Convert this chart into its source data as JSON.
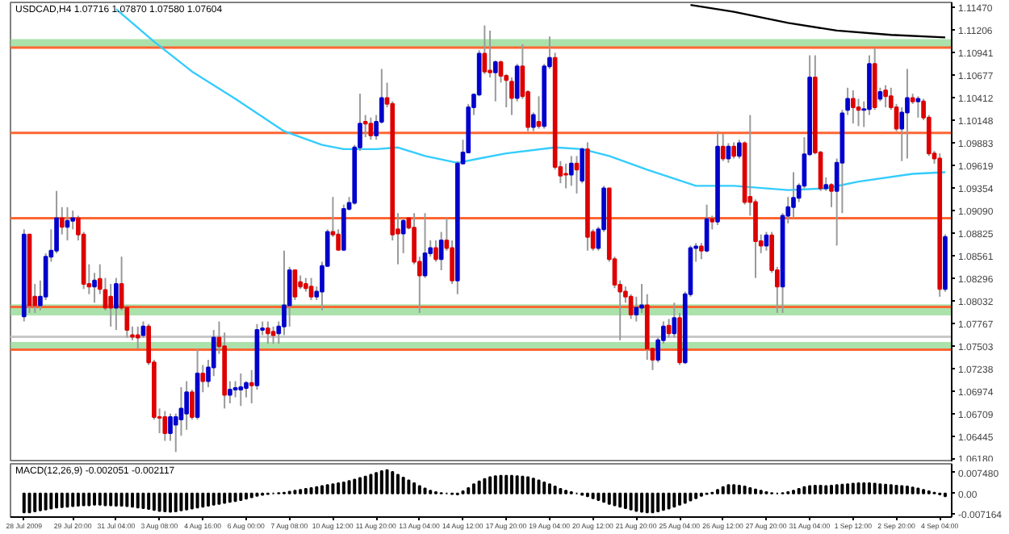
{
  "chart_data": [
    {
      "type": "candlestick",
      "title": "USDCAD,H4 1.07716 1.07870 1.07580 1.07604",
      "colors": [
        "#0000cc",
        "#dd0000",
        "#dd0000",
        "#0000cc",
        "#0000cc",
        "#0000cc",
        "#0000cc",
        "#dd0000",
        "#0000cc",
        "#0000cc",
        "#dd0000",
        "#dd0000",
        "#dd0000",
        "#0000cc",
        "#dd0000",
        "#dd0000",
        "#dd0000",
        "#0000cc",
        "#dd0000",
        "#dd0000",
        "#dd0000",
        "#dd0000",
        "#0000cc",
        "#dd0000",
        "#dd0000",
        "#dd0000",
        "#dd0000",
        "#0000cc",
        "#0000cc",
        "#0000cc",
        "#0000cc",
        "#dd0000",
        "#0000cc",
        "#dd0000",
        "#0000cc",
        "#0000cc",
        "#dd0000",
        "#dd0000",
        "#0000cc",
        "#0000cc",
        "#0000cc",
        "#0000cc",
        "#dd0000",
        "#0000cc",
        "#0000cc",
        "#dd0000",
        "#dd0000",
        "#0000cc",
        "#0000cc",
        "#0000cc",
        "#dd0000",
        "#dd0000",
        "#dd0000",
        "#dd0000",
        "#0000cc",
        "#0000cc",
        "#0000cc",
        "#dd0000",
        "#dd0000",
        "#0000cc",
        "#0000cc",
        "#0000cc",
        "#0000cc",
        "#dd0000",
        "#dd0000",
        "#0000cc",
        "#0000cc",
        "#dd0000",
        "#dd0000",
        "#dd0000",
        "#0000cc",
        "#dd0000",
        "#dd0000",
        "#dd0000",
        "#0000cc",
        "#0000cc",
        "#dd0000",
        "#0000cc",
        "#dd0000",
        "#dd0000",
        "#0000cc",
        "#0000cc",
        "#0000cc",
        "#0000cc",
        "#0000cc",
        "#dd0000",
        "#dd0000",
        "#0000cc",
        "#dd0000",
        "#dd0000",
        "#dd0000",
        "#0000cc",
        "#dd0000",
        "#dd0000",
        "#0000cc",
        "#dd0000",
        "#0000cc",
        "#0000cc",
        "#dd0000",
        "#dd0000",
        "#dd0000",
        "#0000cc",
        "#dd0000",
        "#0000cc",
        "#dd0000",
        "#dd0000",
        "#0000cc",
        "#0000cc",
        "#dd0000",
        "#dd0000",
        "#dd0000",
        "#dd0000",
        "#dd0000",
        "#0000cc",
        "#0000cc",
        "#dd0000",
        "#dd0000",
        "#0000cc",
        "#0000cc",
        "#dd0000",
        "#0000cc",
        "#dd0000",
        "#0000cc",
        "#0000cc",
        "#0000cc",
        "#dd0000",
        "#0000cc",
        "#dd0000",
        "#0000cc",
        "#dd0000",
        "#0000cc",
        "#dd0000",
        "#0000cc",
        "#dd0000",
        "#dd0000",
        "#dd0000",
        "#dd0000",
        "#0000cc",
        "#dd0000",
        "#dd0000",
        "#0000cc",
        "#0000cc",
        "#0000cc",
        "#0000cc",
        "#0000cc",
        "#0000cc",
        "#dd0000",
        "#dd0000",
        "#0000cc",
        "#dd0000",
        "#0000cc",
        "#0000cc",
        "#0000cc",
        "#dd0000",
        "#dd0000",
        "#0000cc",
        "#0000cc",
        "#dd0000",
        "#0000cc",
        "#dd0000",
        "#dd0000",
        "#dd0000",
        "#0000cc",
        "#0000cc",
        "#dd0000",
        "#0000cc",
        "#dd0000",
        "#dd0000",
        "#dd0000",
        "#dd0000",
        "#0000cc"
      ],
      "categories": [
        null,
        null,
        null,
        null,
        null,
        null,
        null,
        null,
        null,
        null,
        null,
        null,
        null,
        null,
        null,
        null,
        null,
        null,
        null,
        null,
        null,
        null,
        null,
        null,
        null,
        null,
        null,
        null,
        null,
        null,
        null,
        null,
        null,
        null,
        null,
        null,
        null,
        null,
        null,
        null,
        null,
        null,
        null,
        null,
        null,
        null,
        null,
        null,
        null,
        null,
        null,
        null,
        null,
        null,
        null,
        null,
        null,
        null,
        null,
        null,
        null,
        null,
        null,
        null,
        null,
        null,
        null,
        null,
        null,
        null,
        null,
        null,
        null,
        null,
        null,
        null,
        null,
        null,
        null,
        null,
        null,
        null,
        null,
        null,
        null,
        null,
        null,
        null,
        null,
        null,
        null,
        null,
        null,
        null,
        null,
        null,
        null,
        null,
        null,
        null,
        null,
        null,
        null,
        null,
        null,
        null,
        null,
        null,
        null,
        null,
        null,
        null,
        null,
        null,
        null,
        null,
        null,
        null,
        null,
        null,
        null,
        null,
        null,
        null,
        null,
        null,
        null,
        null,
        null,
        null,
        null,
        null,
        null,
        null,
        null,
        null,
        null,
        null,
        null,
        null,
        null,
        null,
        null,
        null,
        null,
        null,
        null,
        null,
        null,
        null,
        null,
        null,
        null,
        null,
        null,
        null,
        null,
        null,
        null,
        null,
        null,
        null,
        null,
        null,
        null,
        null,
        null,
        null,
        null,
        null,
        null
      ],
      "ohlc": [
        [
          1.0785,
          1.0887,
          1.0779,
          1.0881
        ],
        [
          1.0881,
          1.0881,
          1.0789,
          1.0798
        ],
        [
          1.0808,
          1.0823,
          1.0789,
          1.0798
        ],
        [
          1.0798,
          1.0827,
          1.0792,
          1.0808
        ],
        [
          1.0808,
          1.0859,
          1.0804,
          1.0855
        ],
        [
          1.0855,
          1.0887,
          1.0849,
          1.0862
        ],
        [
          1.0862,
          1.0932,
          1.0859,
          1.09
        ],
        [
          1.09,
          1.0913,
          1.0881,
          1.089
        ],
        [
          1.089,
          1.0913,
          1.0874,
          1.0897
        ],
        [
          1.0897,
          1.0909,
          1.0887,
          1.09
        ],
        [
          1.09,
          1.0903,
          1.0874,
          1.0881
        ],
        [
          1.0881,
          1.0884,
          1.0817,
          1.0823
        ],
        [
          1.0823,
          1.0846,
          1.0811,
          1.082
        ],
        [
          1.082,
          1.0836,
          1.0801,
          1.0827
        ],
        [
          1.0829,
          1.0846,
          1.0811,
          1.0817
        ],
        [
          1.0816,
          1.083,
          1.0792,
          1.0795
        ],
        [
          1.0808,
          1.0823,
          1.0773,
          1.0795
        ],
        [
          1.0795,
          1.083,
          1.0769,
          1.0823
        ],
        [
          1.0823,
          1.0855,
          1.0792,
          1.0795
        ],
        [
          1.0795,
          1.0798,
          1.076,
          1.0769
        ],
        [
          1.0763,
          1.0773,
          1.0757,
          1.0761
        ],
        [
          1.0763,
          1.0773,
          1.0747,
          1.076
        ],
        [
          1.0763,
          1.0779,
          1.076,
          1.0773
        ],
        [
          1.0773,
          1.0776,
          1.0728,
          1.0731
        ],
        [
          1.0731,
          1.0734,
          1.0664,
          1.0667
        ],
        [
          1.0667,
          1.0677,
          1.0648,
          1.0666
        ],
        [
          1.0667,
          1.0674,
          1.0639,
          1.0648
        ],
        [
          1.0648,
          1.0671,
          1.0639,
          1.0667
        ],
        [
          1.0658,
          1.0671,
          1.0626,
          1.0667
        ],
        [
          1.0664,
          1.0702,
          1.0645,
          1.0677
        ],
        [
          1.0671,
          1.0709,
          1.0652,
          1.0696
        ],
        [
          1.0696,
          1.0699,
          1.0664,
          1.0667
        ],
        [
          1.0667,
          1.0747,
          1.0664,
          1.0718
        ],
        [
          1.0718,
          1.0728,
          1.0696,
          1.0709
        ],
        [
          1.0709,
          1.0734,
          1.0702,
          1.0725
        ],
        [
          1.0725,
          1.0769,
          1.0715,
          1.076
        ],
        [
          1.076,
          1.0779,
          1.0741,
          1.075
        ],
        [
          1.075,
          1.0766,
          1.0677,
          1.0693
        ],
        [
          1.0693,
          1.0709,
          1.0683,
          1.0699
        ],
        [
          1.0699,
          1.0709,
          1.069,
          1.0701
        ],
        [
          1.0699,
          1.0718,
          1.068,
          1.0702
        ],
        [
          1.0701,
          1.0709,
          1.069,
          1.0707
        ],
        [
          1.0707,
          1.0722,
          1.0683,
          1.0704
        ],
        [
          1.0704,
          1.0776,
          1.0699,
          1.0769
        ],
        [
          1.0769,
          1.0779,
          1.0763,
          1.0771
        ],
        [
          1.0771,
          1.0779,
          1.0753,
          1.0765
        ],
        [
          1.0767,
          1.0773,
          1.0753,
          1.0763
        ],
        [
          1.0765,
          1.0779,
          1.0753,
          1.0773
        ],
        [
          1.0773,
          1.0862,
          1.0763,
          1.0798
        ],
        [
          1.0798,
          1.0843,
          1.0773,
          1.0839
        ],
        [
          1.0839,
          1.0839,
          1.0804,
          1.0808
        ],
        [
          1.0825,
          1.0833,
          1.0817,
          1.082
        ],
        [
          1.0823,
          1.083,
          1.0814,
          1.0818
        ],
        [
          1.082,
          1.083,
          1.0804,
          1.0808
        ],
        [
          1.0808,
          1.082,
          1.0804,
          1.0814
        ],
        [
          1.0814,
          1.0849,
          1.0792,
          1.0844
        ],
        [
          1.0844,
          1.0887,
          1.0843,
          1.0884
        ],
        [
          1.0884,
          1.0925,
          1.0878,
          1.0881
        ],
        [
          1.0881,
          1.0887,
          1.0862,
          1.0863
        ],
        [
          1.0863,
          1.0916,
          1.0862,
          1.0911
        ],
        [
          1.0911,
          1.0925,
          1.0909,
          1.0918
        ],
        [
          1.0918,
          1.0986,
          1.0916,
          1.0983
        ],
        [
          1.0983,
          1.1046,
          1.0979,
          1.1011
        ],
        [
          1.1013,
          1.1021,
          1.0995,
          1.1011
        ],
        [
          1.1011,
          1.1018,
          1.0992,
          1.0997
        ],
        [
          1.0997,
          1.1021,
          1.0992,
          1.1013
        ],
        [
          1.1013,
          1.1075,
          1.1011,
          1.1041
        ],
        [
          1.1041,
          1.1059,
          1.103,
          1.1034
        ],
        [
          1.1034,
          1.1037,
          1.0874,
          1.0881
        ],
        [
          1.0887,
          1.0906,
          1.0846,
          1.0882
        ],
        [
          1.0882,
          1.09,
          1.0859,
          1.0897
        ],
        [
          1.09,
          1.09,
          1.0887,
          1.0889
        ],
        [
          1.0889,
          1.0906,
          1.0846,
          1.0849
        ],
        [
          1.0849,
          1.0855,
          1.0789,
          1.0833
        ],
        [
          1.0833,
          1.0906,
          1.083,
          1.0859
        ],
        [
          1.0859,
          1.0874,
          1.0855,
          1.0865
        ],
        [
          1.0865,
          1.0874,
          1.0849,
          1.0852
        ],
        [
          1.0852,
          1.0884,
          1.0839,
          1.0874
        ],
        [
          1.0874,
          1.09,
          1.0862,
          1.0865
        ],
        [
          1.0865,
          1.0874,
          1.0823,
          1.0827
        ],
        [
          1.0827,
          1.0967,
          1.0811,
          1.0964
        ],
        [
          1.0964,
          1.0992,
          1.0964,
          1.0977
        ],
        [
          1.0977,
          1.1034,
          1.0976,
          1.103
        ],
        [
          1.103,
          1.1046,
          1.1021,
          1.1045
        ],
        [
          1.1045,
          1.1097,
          1.1043,
          1.1093
        ],
        [
          1.1093,
          1.1126,
          1.1069,
          1.1072
        ],
        [
          1.1073,
          1.112,
          1.1065,
          1.1071
        ],
        [
          1.1071,
          1.1085,
          1.1037,
          1.1083
        ],
        [
          1.1083,
          1.1085,
          1.1059,
          1.1067
        ],
        [
          1.1067,
          1.1069,
          1.103,
          1.1062
        ],
        [
          1.106,
          1.1065,
          1.1021,
          1.1041
        ],
        [
          1.1041,
          1.1081,
          1.1037,
          1.1078
        ],
        [
          1.1078,
          1.1104,
          1.104,
          1.1043
        ],
        [
          1.1048,
          1.105,
          1.1002,
          1.1007
        ],
        [
          1.1007,
          1.1024,
          1.1002,
          1.1021
        ],
        [
          1.1013,
          1.1043,
          1.1005,
          1.1008
        ],
        [
          1.1008,
          1.1081,
          1.1005,
          1.1078
        ],
        [
          1.1078,
          1.1113,
          1.1075,
          1.1088
        ],
        [
          1.1088,
          1.1094,
          1.0957,
          1.096
        ],
        [
          1.096,
          1.0967,
          1.0941,
          1.095
        ],
        [
          1.0952,
          1.0964,
          1.0935,
          1.0951
        ],
        [
          1.0951,
          1.0973,
          1.0938,
          1.0964
        ],
        [
          1.0964,
          1.0973,
          1.0929,
          1.0957
        ],
        [
          1.0944,
          1.0983,
          1.0941,
          1.0981
        ],
        [
          1.0981,
          1.0989,
          1.0862,
          1.0878
        ],
        [
          1.0884,
          1.0887,
          1.0862,
          1.0865
        ],
        [
          1.0865,
          1.089,
          1.0862,
          1.0887
        ],
        [
          1.0887,
          1.0938,
          1.0884,
          1.0935
        ],
        [
          1.0935,
          1.0935,
          1.0849,
          1.0852
        ],
        [
          1.0852,
          1.0855,
          1.0818,
          1.0822
        ],
        [
          1.0822,
          1.0827,
          1.0757,
          1.0814
        ],
        [
          1.0814,
          1.082,
          1.0801,
          1.0808
        ],
        [
          1.0808,
          1.0811,
          1.0782,
          1.0787
        ],
        [
          1.0787,
          1.0808,
          1.0779,
          1.0795
        ],
        [
          1.0795,
          1.0823,
          1.0789,
          1.0798
        ],
        [
          1.0798,
          1.0811,
          1.0734,
          1.0747
        ],
        [
          1.0747,
          1.0747,
          1.0722,
          1.0734
        ],
        [
          1.0734,
          1.076,
          1.0731,
          1.0757
        ],
        [
          1.0757,
          1.0779,
          1.0753,
          1.0773
        ],
        [
          1.0774,
          1.0782,
          1.076,
          1.0765
        ],
        [
          1.0765,
          1.0801,
          1.076,
          1.0783
        ],
        [
          1.0783,
          1.0789,
          1.0728,
          1.0731
        ],
        [
          1.0731,
          1.0814,
          1.0729,
          1.0811
        ],
        [
          1.0811,
          1.0868,
          1.0808,
          1.0865
        ],
        [
          1.0865,
          1.0871,
          1.0849,
          1.0867
        ],
        [
          1.0867,
          1.0871,
          1.0852,
          1.0862
        ],
        [
          1.0862,
          1.0916,
          1.086,
          1.0899
        ],
        [
          1.0899,
          1.0903,
          1.0887,
          1.0896
        ],
        [
          1.0896,
          1.1002,
          1.0892,
          1.0984
        ],
        [
          1.0984,
          1.0999,
          1.0967,
          1.097
        ],
        [
          1.097,
          1.0988,
          1.0965,
          1.0984
        ],
        [
          1.0984,
          1.0989,
          1.097,
          1.0973
        ],
        [
          1.0973,
          1.0992,
          1.097,
          1.0988
        ],
        [
          1.0988,
          1.099,
          1.0916,
          1.0919
        ],
        [
          1.0925,
          1.1021,
          1.0903,
          1.0919
        ],
        [
          1.0919,
          1.0922,
          1.083,
          1.0873
        ],
        [
          1.0873,
          1.0881,
          1.0859,
          1.0868
        ],
        [
          1.0868,
          1.0884,
          1.0862,
          1.088
        ],
        [
          1.088,
          1.0884,
          1.0836,
          1.0839
        ],
        [
          1.0839,
          1.0843,
          1.0789,
          1.082
        ],
        [
          1.082,
          1.0906,
          1.0789,
          1.0903
        ],
        [
          1.0903,
          1.0925,
          1.0894,
          1.0913
        ],
        [
          1.0913,
          1.0954,
          1.09,
          1.0924
        ],
        [
          1.0924,
          1.0941,
          1.0919,
          1.0938
        ],
        [
          1.0938,
          1.0995,
          1.0935,
          1.0975
        ],
        [
          1.0975,
          1.1091,
          1.0973,
          1.1065
        ],
        [
          1.1065,
          1.1091,
          1.0975,
          1.0977
        ],
        [
          1.0977,
          1.0979,
          1.0932,
          1.0935
        ],
        [
          1.0935,
          1.0948,
          1.0932,
          1.0939
        ],
        [
          1.0939,
          1.0941,
          1.0913,
          1.0932
        ],
        [
          1.0932,
          1.097,
          1.0868,
          1.0965
        ],
        [
          1.0965,
          1.1027,
          1.0906,
          1.1023
        ],
        [
          1.1027,
          1.1053,
          1.1021,
          1.104
        ],
        [
          1.104,
          1.105,
          1.1011,
          1.103
        ],
        [
          1.103,
          1.104,
          1.1008,
          1.1027
        ],
        [
          1.1027,
          1.1037,
          1.1007,
          1.1028
        ],
        [
          1.1028,
          1.1091,
          1.1021,
          1.1081
        ],
        [
          1.1081,
          1.11,
          1.1027,
          1.103
        ],
        [
          1.104,
          1.1053,
          1.1037,
          1.1048
        ],
        [
          1.105,
          1.1056,
          1.103,
          1.1043
        ],
        [
          1.1043,
          1.1053,
          1.1027,
          1.103
        ],
        [
          1.103,
          1.1034,
          1.1002,
          1.1005
        ],
        [
          1.1005,
          1.103,
          1.0967,
          1.1024
        ],
        [
          1.1024,
          1.1075,
          1.097,
          1.1041
        ],
        [
          1.1041,
          1.1046,
          1.1034,
          1.1037
        ],
        [
          1.1037,
          1.1043,
          1.1018,
          1.104
        ],
        [
          1.1037,
          1.104,
          1.1015,
          1.1018
        ],
        [
          1.1018,
          1.1021,
          1.0973,
          1.0976
        ],
        [
          1.0976,
          1.0979,
          1.0964,
          1.097
        ],
        [
          1.097,
          1.0976,
          1.0808,
          1.0817
        ],
        [
          1.0817,
          1.0881,
          1.0814,
          1.0878
        ]
      ],
      "series": [
        {
          "type": "line",
          "color": "#33ccff",
          "values": [
            null,
            null,
            null,
            null,
            null,
            null,
            null,
            null,
            null,
            null,
            null,
            null,
            null,
            null,
            null,
            null,
            null,
            1.1145,
            null,
            null,
            null,
            null,
            null,
            null,
            1.1107,
            null,
            null,
            null,
            null,
            null,
            null,
            1.1072,
            null,
            null,
            null,
            null,
            null,
            null,
            null,
            1.104,
            null,
            null,
            null,
            null,
            null,
            null,
            null,
            null,
            1.1002,
            null,
            null,
            null,
            null,
            null,
            null,
            1.0986,
            null,
            null,
            null,
            1.0981,
            null,
            null,
            null,
            null,
            null,
            1.0981,
            null,
            null,
            null,
            1.0983,
            null,
            null,
            null,
            null,
            1.0973,
            null,
            null,
            null,
            null,
            null,
            1.0965,
            null,
            null,
            null,
            1.097,
            null,
            null,
            null,
            null,
            1.0976,
            null,
            null,
            null,
            null,
            null,
            null,
            null,
            null,
            1.0983,
            null,
            null,
            null,
            null,
            1.0981,
            null,
            null,
            null,
            null,
            1.0973,
            null,
            null,
            null,
            null,
            null,
            null,
            1.0957,
            null,
            null,
            null,
            null,
            null,
            null,
            null,
            null,
            1.0938,
            null,
            null,
            null,
            null,
            null,
            null,
            1.0938,
            null,
            null,
            null,
            null,
            null,
            null,
            null,
            null,
            null,
            1.0933,
            null,
            null,
            null,
            null,
            null,
            null,
            1.0935,
            null,
            null,
            null,
            null,
            null,
            1.0943,
            null,
            null,
            null,
            null,
            null,
            null,
            null,
            null,
            null,
            1.0952,
            null,
            null,
            null,
            null,
            null,
            1.0954
          ]
        },
        {
          "type": "line",
          "color": "#000000",
          "values": [
            null,
            null,
            null,
            null,
            null,
            null,
            null,
            null,
            null,
            null,
            null,
            null,
            null,
            null,
            null,
            null,
            null,
            null,
            null,
            null,
            null,
            null,
            null,
            null,
            null,
            null,
            null,
            null,
            null,
            null,
            null,
            null,
            null,
            null,
            null,
            null,
            null,
            null,
            null,
            null,
            null,
            null,
            null,
            null,
            null,
            null,
            null,
            null,
            null,
            null,
            null,
            null,
            null,
            null,
            null,
            null,
            null,
            null,
            null,
            null,
            null,
            null,
            null,
            null,
            null,
            null,
            null,
            null,
            null,
            null,
            null,
            null,
            null,
            null,
            null,
            null,
            null,
            null,
            null,
            null,
            null,
            null,
            null,
            null,
            null,
            null,
            null,
            null,
            null,
            null,
            null,
            null,
            null,
            null,
            null,
            null,
            null,
            null,
            null,
            null,
            null,
            null,
            null,
            null,
            null,
            null,
            null,
            null,
            null,
            null,
            null,
            null,
            null,
            null,
            null,
            null,
            null,
            null,
            null,
            null,
            null,
            null,
            null,
            1.115,
            null,
            null,
            null,
            null,
            null,
            null,
            null,
            1.1142,
            null,
            null,
            null,
            null,
            null,
            null,
            null,
            null,
            null,
            1.1129,
            null,
            null,
            null,
            null,
            null,
            null,
            null,
            null,
            1.112,
            null,
            null,
            null,
            null,
            null,
            null,
            null,
            null,
            null,
            1.1115,
            null,
            null,
            null,
            null,
            null,
            null,
            null,
            null,
            null,
            1.1112
          ]
        }
      ],
      "ref_lines": [
        {
          "axis": "y",
          "value": 1.11,
          "color": "#ff6633"
        },
        {
          "axis": "y",
          "value": 1.1,
          "color": "#ff6633"
        },
        {
          "axis": "y",
          "value": 1.09,
          "color": "#ff6633"
        },
        {
          "axis": "y",
          "value": 1.0796,
          "color": "#ff6633"
        },
        {
          "axis": "y",
          "value": 1.0746,
          "color": "#ff6633"
        },
        {
          "axis": "y",
          "value": 1.0761,
          "color": "#c8c8c8"
        }
      ],
      "bands": [
        {
          "axis": "y",
          "from": 1.11,
          "to": 1.111,
          "color": "#8fd88f"
        },
        {
          "axis": "y",
          "from": 1.0786,
          "to": 1.0799,
          "color": "#8fd88f"
        },
        {
          "axis": "y",
          "from": 1.0745,
          "to": 1.0755,
          "color": "#8fd88f"
        }
      ],
      "ylim": [
        1.0614,
        1.1153
      ],
      "yticks": [
        {
          "value": 1.1147,
          "label": "1.11470"
        },
        1.11206,
        1.10941,
        1.10677,
        1.10412,
        1.10148,
        1.09883,
        1.09619,
        1.09354,
        {
          "value": 1.0909,
          "label": "1.09090"
        },
        1.08825,
        1.08561,
        1.08296,
        1.08032,
        1.07767,
        1.07503,
        1.07238,
        1.06974,
        1.06709,
        1.06445,
        {
          "value": 1.0618,
          "label": "1.06180"
        }
      ],
      "tick_labels": "y"
    },
    {
      "type": "bar",
      "title": "MACD(12,26,9) -0.002051 -0.002117",
      "color": "#000000",
      "categories": [
        "28 Jul 2009",
        null,
        null,
        null,
        null,
        null,
        null,
        null,
        null,
        "29 Jul 20:00",
        null,
        null,
        null,
        null,
        null,
        null,
        null,
        "31 Jul 04:00",
        null,
        null,
        null,
        null,
        null,
        null,
        null,
        "3 Aug 08:00",
        null,
        null,
        null,
        null,
        null,
        null,
        null,
        "4 Aug 16:00",
        null,
        null,
        null,
        null,
        null,
        null,
        null,
        "6 Aug 00:00",
        null,
        null,
        null,
        null,
        null,
        null,
        null,
        "7 Aug 08:00",
        null,
        null,
        null,
        null,
        null,
        null,
        null,
        "10 Aug 12:00",
        null,
        null,
        null,
        null,
        null,
        null,
        null,
        "11 Aug 20:00",
        null,
        null,
        null,
        null,
        null,
        null,
        null,
        "13 Aug 04:00",
        null,
        null,
        null,
        null,
        null,
        null,
        null,
        "14 Aug 12:00",
        null,
        null,
        null,
        null,
        null,
        null,
        null,
        "17 Aug 20:00",
        null,
        null,
        null,
        null,
        null,
        null,
        null,
        "19 Aug 04:00",
        null,
        null,
        null,
        null,
        null,
        null,
        null,
        "20 Aug 12:00",
        null,
        null,
        null,
        null,
        null,
        null,
        null,
        "21 Aug 20:00",
        null,
        null,
        null,
        null,
        null,
        null,
        null,
        "25 Aug 04:00",
        null,
        null,
        null,
        null,
        null,
        null,
        null,
        "26 Aug 12:00",
        null,
        null,
        null,
        null,
        null,
        null,
        null,
        "27 Aug 20:00",
        null,
        null,
        null,
        null,
        null,
        null,
        null,
        "31 Aug 04:00",
        null,
        null,
        null,
        null,
        null,
        null,
        null,
        "1 Sep 12:00",
        null,
        null,
        null,
        null,
        null,
        null,
        null,
        "2 Sep 20:00",
        null,
        null,
        null,
        null,
        null,
        null,
        null,
        "4 Sep 04:00",
        null
      ],
      "values": [
        -0.00664,
        -0.00664,
        -0.00631,
        -0.00598,
        -0.00564,
        -0.00531,
        -0.00498,
        -0.00481,
        -0.00465,
        -0.00448,
        -0.00432,
        -0.00415,
        -0.00415,
        -0.00398,
        -0.00398,
        -0.00415,
        -0.00415,
        -0.00432,
        -0.00432,
        -0.00448,
        -0.00465,
        -0.00498,
        -0.00515,
        -0.00548,
        -0.00581,
        -0.00614,
        -0.00631,
        -0.00647,
        -0.00631,
        -0.00598,
        -0.00564,
        -0.00531,
        -0.00498,
        -0.00465,
        -0.00432,
        -0.00398,
        -0.00365,
        -0.00332,
        -0.00299,
        -0.00266,
        -0.00232,
        -0.00183,
        -0.00133,
        -0.00083,
        -0.0005,
        -0.00017,
        0,
        0.00017,
        0.00033,
        0.00066,
        0.001,
        0.00133,
        0.00166,
        0.00199,
        0.00232,
        0.00266,
        0.00299,
        0.00332,
        0.00365,
        0.00398,
        0.00448,
        0.00498,
        0.00548,
        0.00598,
        0.00664,
        0.0073,
        0.00797,
        0.0083,
        0.00764,
        0.00664,
        0.00564,
        0.00465,
        0.00365,
        0.00266,
        0.00183,
        0.001,
        0.0005,
        0.00017,
        0,
        -0.00017,
        -0.00033,
        0.00083,
        0.00199,
        0.00332,
        0.00432,
        0.00515,
        0.00581,
        0.00614,
        0.00631,
        0.00631,
        0.00631,
        0.00614,
        0.00598,
        0.00581,
        0.00531,
        0.00465,
        0.00398,
        0.00332,
        0.00249,
        0.00166,
        0.001,
        0.0005,
        0,
        -0.0005,
        -0.001,
        -0.00166,
        -0.00232,
        -0.00299,
        -0.00365,
        -0.00415,
        -0.00465,
        -0.00515,
        -0.00564,
        -0.00614,
        -0.00647,
        -0.00664,
        -0.00664,
        -0.00631,
        -0.00581,
        -0.00531,
        -0.00465,
        -0.00398,
        -0.00332,
        -0.00249,
        -0.00166,
        -0.00083,
        -0.00017,
        0.00033,
        0.00133,
        0.00232,
        0.00299,
        0.00299,
        0.00282,
        0.00249,
        0.00199,
        0.00149,
        0.001,
        0.0005,
        0.00017,
        0,
        0.00017,
        0.0005,
        0.001,
        0.00166,
        0.00232,
        0.00266,
        0.00282,
        0.00282,
        0.00266,
        0.00282,
        0.00299,
        0.00315,
        0.00332,
        0.00349,
        0.00365,
        0.00365,
        0.00365,
        0.00349,
        0.00332,
        0.00315,
        0.00299,
        0.00282,
        0.00266,
        0.00249,
        0.00216,
        0.00183,
        0.00133,
        0.00083,
        0.00033,
        -0.00033,
        -0.001
      ],
      "ylim": [
        -0.0083,
        0.0105
      ],
      "yticks": [
        {
          "value": 0.00748,
          "label": "0.007480"
        },
        {
          "value": 0,
          "label": "0.00"
        },
        -0.007164
      ]
    }
  ]
}
